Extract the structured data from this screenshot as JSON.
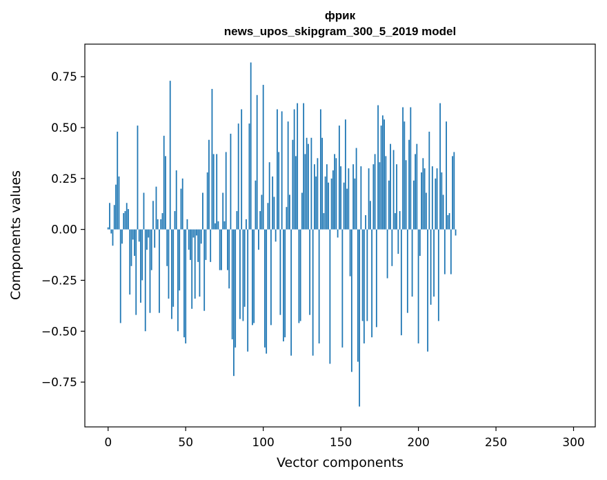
{
  "chart_data": {
    "type": "bar",
    "title_line1": "фрик",
    "title_line2": "news_upos_skipgram_300_5_2019 model",
    "xlabel": "Vector components",
    "ylabel": "Components values",
    "xlim": [
      -15,
      314
    ],
    "ylim": [
      -0.97,
      0.91
    ],
    "x_ticks": [
      0,
      50,
      100,
      150,
      200,
      250,
      300
    ],
    "x_tick_labels": [
      "0",
      "50",
      "100",
      "150",
      "200",
      "250",
      "300"
    ],
    "y_ticks": [
      0.75,
      0.5,
      0.25,
      0.0,
      -0.25,
      -0.5,
      -0.75
    ],
    "y_tick_labels": [
      "0.75",
      "0.50",
      "0.25",
      "0.00",
      "−0.25",
      "−0.50",
      "−0.75"
    ],
    "bar_color": "#1f77b4",
    "values": [
      0.01,
      0.13,
      -0.02,
      -0.08,
      0.12,
      0.22,
      0.48,
      0.26,
      -0.46,
      -0.07,
      0.08,
      0.09,
      0.13,
      0.1,
      -0.32,
      -0.18,
      -0.05,
      -0.13,
      -0.42,
      0.51,
      -0.06,
      -0.36,
      -0.25,
      0.18,
      -0.5,
      -0.1,
      -0.04,
      -0.41,
      -0.2,
      0.14,
      -0.09,
      0.21,
      0.05,
      -0.41,
      0.05,
      0.08,
      0.46,
      0.36,
      -0.18,
      -0.34,
      0.73,
      -0.44,
      -0.38,
      0.09,
      0.29,
      -0.5,
      -0.3,
      0.2,
      0.25,
      -0.53,
      -0.56,
      0.05,
      -0.1,
      -0.15,
      -0.39,
      -0.04,
      -0.34,
      -0.03,
      -0.16,
      -0.33,
      -0.07,
      0.18,
      -0.4,
      -0.15,
      0.28,
      0.44,
      -0.16,
      0.69,
      0.37,
      0.03,
      0.37,
      0.04,
      -0.2,
      -0.2,
      0.18,
      0.04,
      0.38,
      -0.2,
      -0.29,
      0.47,
      -0.54,
      -0.72,
      -0.58,
      0.09,
      0.52,
      -0.44,
      0.59,
      -0.45,
      -0.38,
      0.05,
      -0.6,
      0.52,
      0.82,
      -0.47,
      -0.46,
      0.24,
      0.66,
      -0.1,
      0.09,
      0.17,
      0.71,
      -0.58,
      -0.61,
      0.13,
      0.33,
      -0.47,
      0.26,
      0.16,
      -0.06,
      0.59,
      0.38,
      -0.42,
      0.58,
      -0.55,
      -0.53,
      0.11,
      0.53,
      0.17,
      -0.62,
      0.44,
      0.59,
      0.36,
      0.62,
      -0.46,
      -0.45,
      0.18,
      0.62,
      0.37,
      0.45,
      0.42,
      -0.42,
      0.45,
      -0.62,
      0.32,
      0.26,
      0.35,
      -0.56,
      0.59,
      0.45,
      0.08,
      0.26,
      0.32,
      0.23,
      -0.66,
      0.25,
      0.29,
      0.37,
      0.35,
      -0.04,
      0.51,
      0.31,
      -0.58,
      0.23,
      0.54,
      0.2,
      0.3,
      -0.23,
      -0.7,
      0.32,
      0.25,
      0.4,
      -0.65,
      -0.87,
      0.31,
      -0.45,
      -0.56,
      0.07,
      -0.45,
      0.3,
      0.14,
      -0.53,
      0.32,
      0.37,
      -0.48,
      0.61,
      0.33,
      0.51,
      0.56,
      0.54,
      0.36,
      -0.24,
      0.24,
      0.42,
      -0.18,
      0.39,
      0.08,
      0.32,
      -0.12,
      0.09,
      -0.52,
      0.6,
      0.53,
      0.34,
      -0.41,
      0.44,
      0.6,
      -0.33,
      0.24,
      0.37,
      0.42,
      -0.56,
      -0.13,
      0.28,
      0.35,
      0.3,
      0.18,
      -0.6,
      0.48,
      -0.37,
      0.31,
      -0.33,
      0.25,
      0.3,
      -0.45,
      0.62,
      0.28,
      0.17,
      -0.22,
      0.53,
      0.07,
      0.08,
      -0.22,
      0.36,
      0.38,
      -0.03
    ]
  }
}
